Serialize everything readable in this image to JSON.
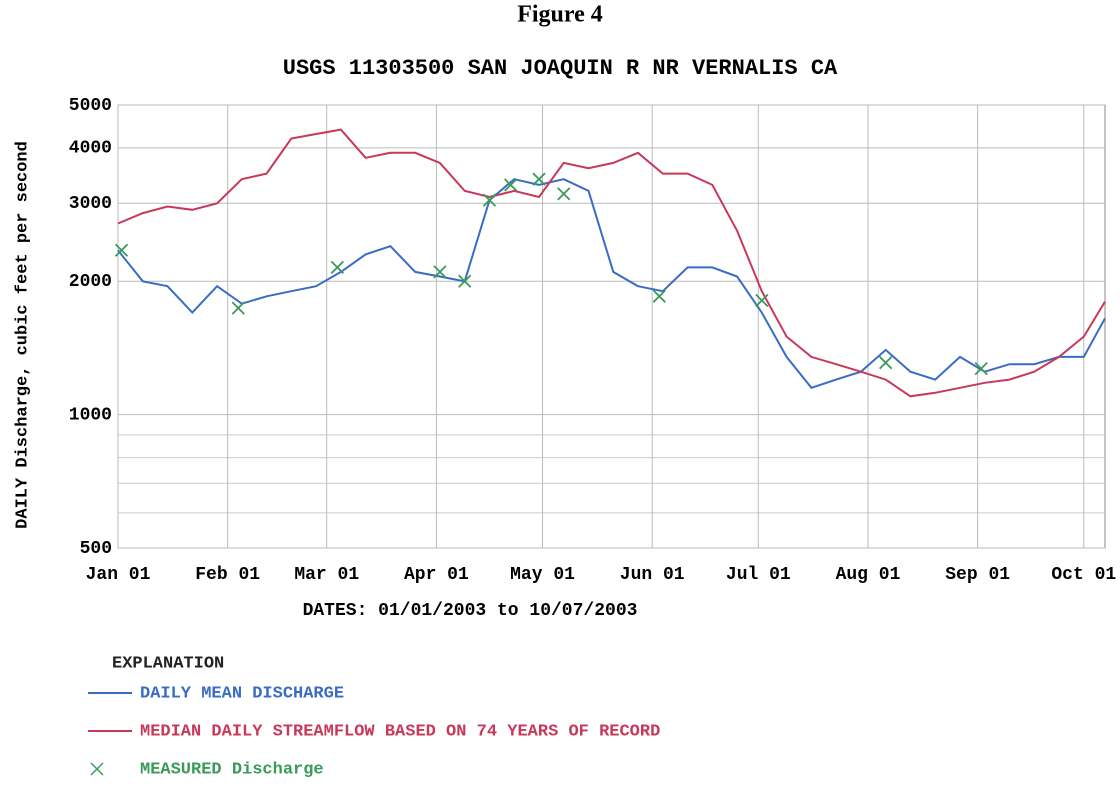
{
  "chart_data": {
    "type": "line",
    "figure_label": "Figure 4",
    "title": "USGS 11303500 SAN JOAQUIN R NR VERNALIS CA",
    "x_label": "DATES: 01/01/2003 to 10/07/2003",
    "y_label": "DAILY Discharge, cubic feet per second",
    "legend_title": "EXPLANATION",
    "legend_position": "bottom",
    "y_log": true,
    "grid": true,
    "xlim": [
      "2003-01-01",
      "2003-10-07"
    ],
    "xticks": [
      {
        "value": "2003-01-01",
        "label": "Jan 01"
      },
      {
        "value": "2003-02-01",
        "label": "Feb 01"
      },
      {
        "value": "2003-03-01",
        "label": "Mar 01"
      },
      {
        "value": "2003-04-01",
        "label": "Apr 01"
      },
      {
        "value": "2003-05-01",
        "label": "May 01"
      },
      {
        "value": "2003-06-01",
        "label": "Jun 01"
      },
      {
        "value": "2003-07-01",
        "label": "Jul 01"
      },
      {
        "value": "2003-08-01",
        "label": "Aug 01"
      },
      {
        "value": "2003-09-01",
        "label": "Sep 01"
      },
      {
        "value": "2003-10-01",
        "label": "Oct 01"
      }
    ],
    "ylim": [
      500,
      5000
    ],
    "yticks": [
      500,
      1000,
      2000,
      3000,
      4000,
      5000
    ],
    "y_minor_ticks": [
      600,
      700,
      800,
      900
    ],
    "x": [
      "2003-01-01",
      "2003-01-08",
      "2003-01-15",
      "2003-01-22",
      "2003-01-29",
      "2003-02-05",
      "2003-02-12",
      "2003-02-19",
      "2003-02-26",
      "2003-03-05",
      "2003-03-12",
      "2003-03-19",
      "2003-03-26",
      "2003-04-02",
      "2003-04-09",
      "2003-04-16",
      "2003-04-23",
      "2003-04-30",
      "2003-05-07",
      "2003-05-14",
      "2003-05-21",
      "2003-05-28",
      "2003-06-04",
      "2003-06-11",
      "2003-06-18",
      "2003-06-25",
      "2003-07-02",
      "2003-07-09",
      "2003-07-16",
      "2003-07-23",
      "2003-07-30",
      "2003-08-06",
      "2003-08-13",
      "2003-08-20",
      "2003-08-27",
      "2003-09-03",
      "2003-09-10",
      "2003-09-17",
      "2003-09-24",
      "2003-10-01",
      "2003-10-07"
    ],
    "series": [
      {
        "name": "DAILY MEAN DISCHARGE",
        "color": "#3a6cc6",
        "values": [
          2350,
          2000,
          1950,
          1700,
          1950,
          1780,
          1850,
          1900,
          1950,
          2100,
          2300,
          2400,
          2100,
          2050,
          2000,
          3050,
          3400,
          3300,
          3400,
          3200,
          2100,
          1950,
          1900,
          2150,
          2150,
          2050,
          1700,
          1350,
          1150,
          1200,
          1250,
          1400,
          1250,
          1200,
          1350,
          1250,
          1300,
          1300,
          1350,
          1350,
          1650
        ]
      },
      {
        "name": "MEDIAN DAILY STREAMFLOW BASED ON 74 YEARS OF RECORD",
        "color": "#c8385a",
        "values": [
          2700,
          2850,
          2950,
          2900,
          3000,
          3400,
          3500,
          4200,
          4300,
          4400,
          3800,
          3900,
          3900,
          3700,
          3200,
          3100,
          3200,
          3100,
          3700,
          3600,
          3700,
          3900,
          3500,
          3500,
          3300,
          2600,
          1900,
          1500,
          1350,
          1300,
          1250,
          1200,
          1100,
          1120,
          1150,
          1180,
          1200,
          1250,
          1350,
          1500,
          1800
        ]
      },
      {
        "name": "MEASURED Discharge",
        "color": "#3a9a5a",
        "type": "scatter",
        "x": [
          "2003-01-02",
          "2003-02-04",
          "2003-03-04",
          "2003-04-02",
          "2003-04-09",
          "2003-04-16",
          "2003-04-22",
          "2003-04-30",
          "2003-05-07",
          "2003-06-03",
          "2003-07-02",
          "2003-08-06",
          "2003-09-02"
        ],
        "values": [
          2350,
          1740,
          2150,
          2100,
          2000,
          3050,
          3300,
          3400,
          3150,
          1850,
          1810,
          1310,
          1270
        ]
      }
    ]
  }
}
